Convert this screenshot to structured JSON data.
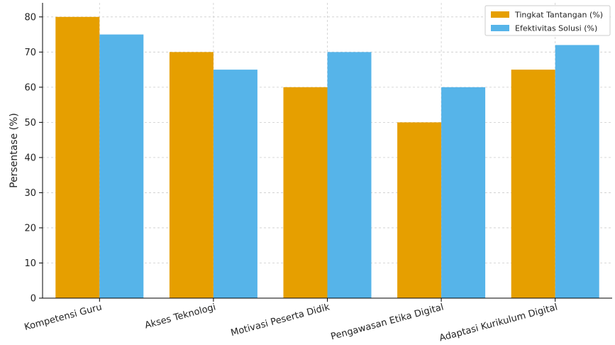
{
  "chart_data": {
    "type": "bar",
    "categories": [
      "Kompetensi Guru",
      "Akses Teknologi",
      "Motivasi Peserta Didik",
      "Pengawasan Etika Digital",
      "Adaptasi Kurikulum Digital"
    ],
    "series": [
      {
        "name": "Tingkat Tantangan (%)",
        "values": [
          80,
          70,
          60,
          50,
          65
        ],
        "color": "#E69F00"
      },
      {
        "name": "Efektivitas Solusi (%)",
        "values": [
          75,
          65,
          70,
          60,
          72
        ],
        "color": "#56B4E9"
      }
    ],
    "ylabel": "Persentase (%)",
    "ylim": [
      0,
      84
    ],
    "yticks": [
      0,
      10,
      20,
      30,
      40,
      50,
      60,
      70,
      80
    ],
    "grid": true,
    "legend_position": "top-right"
  }
}
